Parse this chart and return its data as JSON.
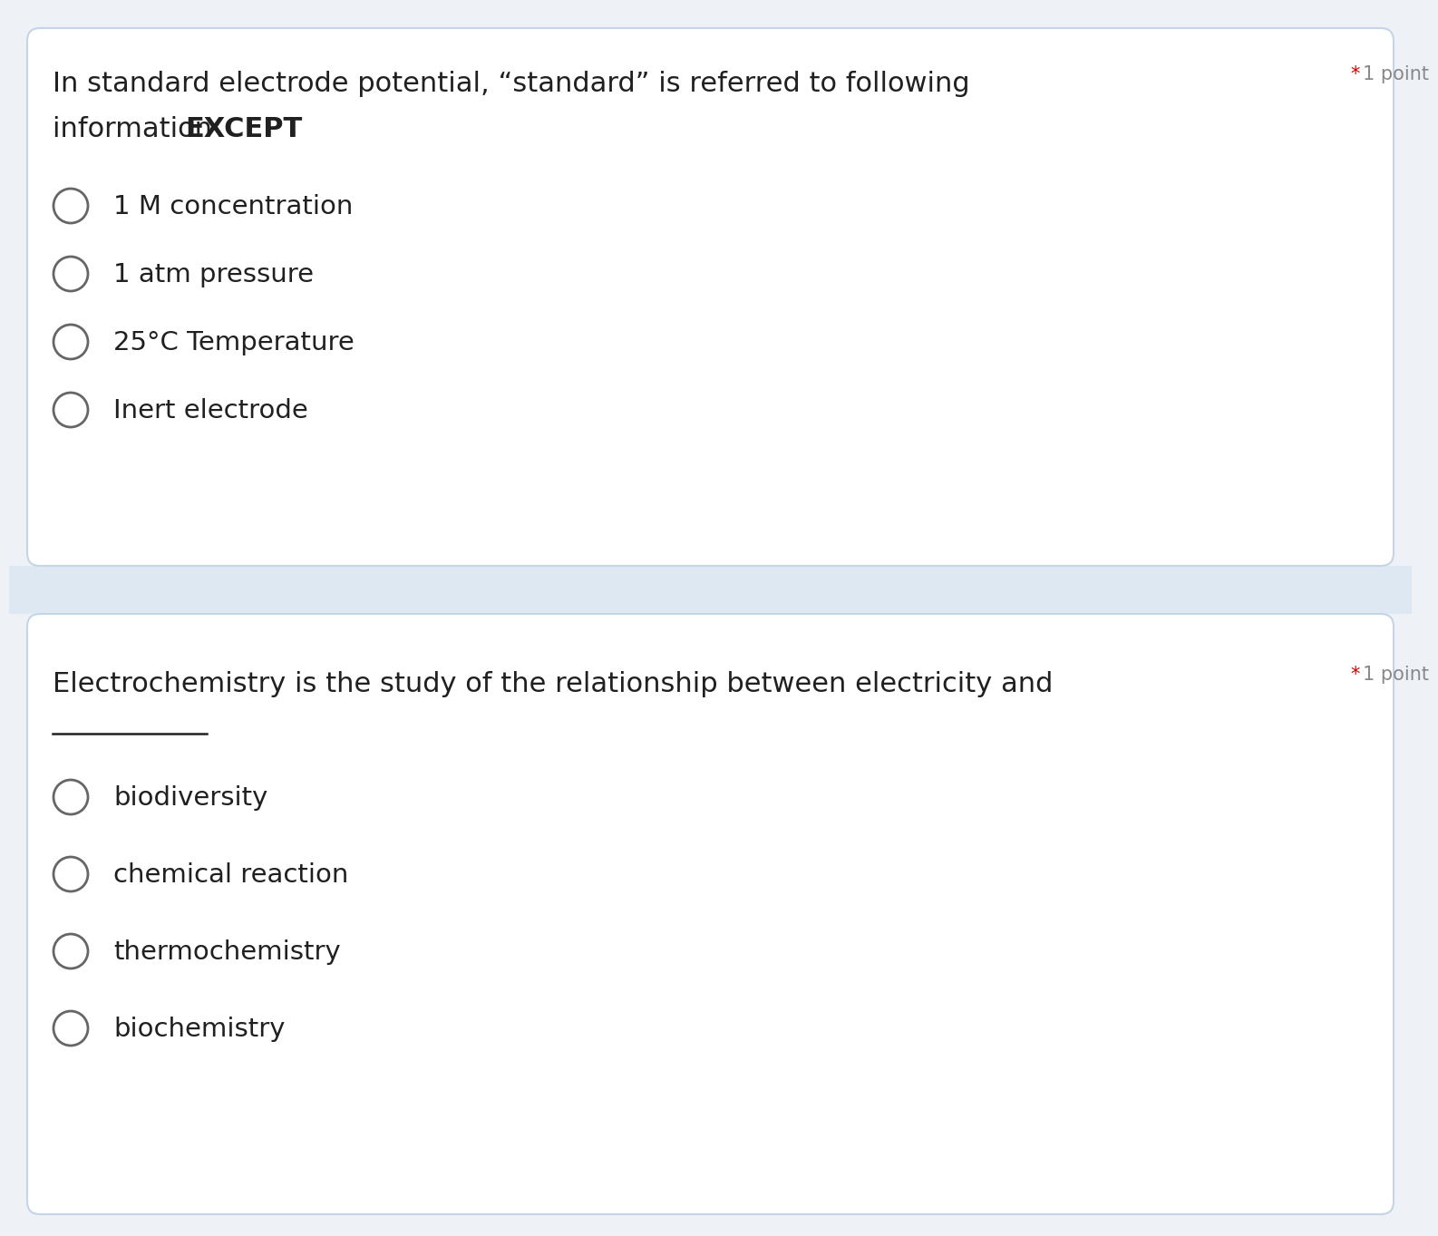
{
  "bg_color": "#eef2f7",
  "card_color": "#ffffff",
  "card_border_color": "#c5d5e5",
  "text_color": "#202020",
  "radio_color": "#666666",
  "star_color": "#cc0000",
  "point_color": "#888888",
  "question1": {
    "text_line1": "In standard electrode potential, “standard” is referred to following",
    "text_line2_normal": "information ",
    "text_line2_bold": "EXCEPT",
    "point_label": "1 point",
    "options": [
      "1 M concentration",
      "1 atm pressure",
      "25°C Temperature",
      "Inert electrode"
    ]
  },
  "question2": {
    "text_line1": "Electrochemistry is the study of the relationship between electricity and",
    "point_label": "1 point",
    "options": [
      "biodiversity",
      "chemical reaction",
      "thermochemistry",
      "biochemistry"
    ]
  },
  "separator_color": "#dde8f2",
  "font_size_question": 22,
  "font_size_option": 21,
  "font_size_point": 15
}
